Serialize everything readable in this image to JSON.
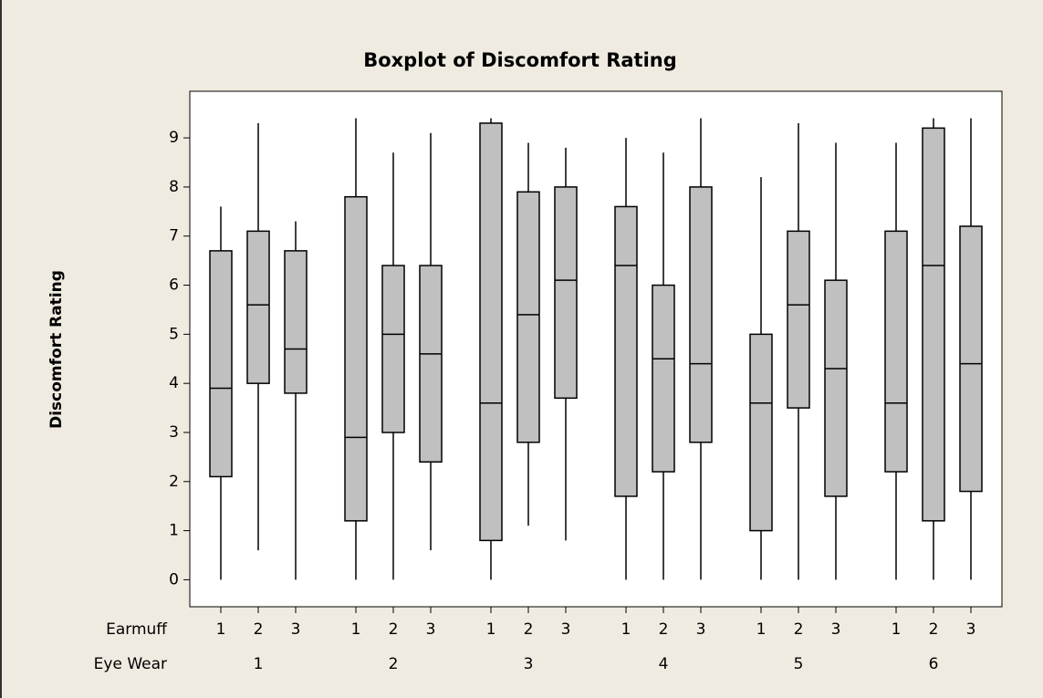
{
  "chart_data": {
    "type": "boxplot",
    "title": "Boxplot of Discomfort Rating",
    "y_label": "Discomfort Rating",
    "inner_level_name": "Earmuff",
    "outer_level_name": "Eye Wear",
    "earmuff": [
      "1",
      "2",
      "3"
    ],
    "eye_wear": [
      "1",
      "2",
      "3",
      "4",
      "5",
      "6"
    ],
    "box_color": "#c0c0c0",
    "ylim": [
      -0.55,
      9.95
    ],
    "yticks": [
      0,
      1,
      2,
      3,
      4,
      5,
      6,
      7,
      8,
      9
    ],
    "boxes": [
      {
        "low": 0,
        "q1": 2.1,
        "median": 3.9,
        "q3": 6.7,
        "high": 7.6
      },
      {
        "low": 0.6,
        "q1": 4.0,
        "median": 5.6,
        "q3": 7.1,
        "high": 9.3
      },
      {
        "low": 0,
        "q1": 3.8,
        "median": 4.7,
        "q3": 6.7,
        "high": 7.3
      },
      {
        "low": 0,
        "q1": 1.2,
        "median": 2.9,
        "q3": 7.8,
        "high": 9.4
      },
      {
        "low": 0,
        "q1": 3.0,
        "median": 5.0,
        "q3": 6.4,
        "high": 8.7
      },
      {
        "low": 0.6,
        "q1": 2.4,
        "median": 4.6,
        "q3": 6.4,
        "high": 9.1
      },
      {
        "low": 0,
        "q1": 0.8,
        "median": 3.6,
        "q3": 9.3,
        "high": 9.4
      },
      {
        "low": 1.1,
        "q1": 2.8,
        "median": 5.4,
        "q3": 7.9,
        "high": 8.9
      },
      {
        "low": 0.8,
        "q1": 3.7,
        "median": 6.1,
        "q3": 8.0,
        "high": 8.8
      },
      {
        "low": 0,
        "q1": 1.7,
        "median": 6.4,
        "q3": 7.6,
        "high": 9.0
      },
      {
        "low": 0,
        "q1": 2.2,
        "median": 4.5,
        "q3": 6.0,
        "high": 8.7
      },
      {
        "low": 0,
        "q1": 2.8,
        "median": 4.4,
        "q3": 8.0,
        "high": 9.4
      },
      {
        "low": 0,
        "q1": 1.0,
        "median": 3.6,
        "q3": 5.0,
        "high": 8.2
      },
      {
        "low": 0,
        "q1": 3.5,
        "median": 5.6,
        "q3": 7.1,
        "high": 9.3
      },
      {
        "low": 0,
        "q1": 1.7,
        "median": 4.3,
        "q3": 6.1,
        "high": 8.9
      },
      {
        "low": 0,
        "q1": 2.2,
        "median": 3.6,
        "q3": 7.1,
        "high": 8.9
      },
      {
        "low": 0,
        "q1": 1.2,
        "median": 6.4,
        "q3": 9.2,
        "high": 9.4
      },
      {
        "low": 0,
        "q1": 1.8,
        "median": 4.4,
        "q3": 7.2,
        "high": 9.4
      }
    ]
  }
}
